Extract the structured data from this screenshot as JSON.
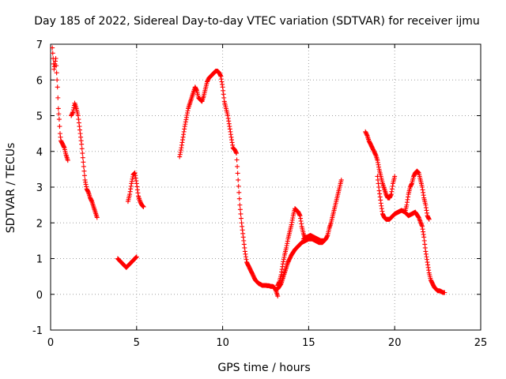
{
  "chart_data": {
    "type": "scatter",
    "title": "Day 185 of 2022, Sidereal Day-to-day VTEC variation (SDTVAR) for receiver ijmu",
    "xlabel": "GPS time / hours",
    "ylabel": "SDTVAR / TECUs",
    "xlim": [
      0,
      25
    ],
    "ylim": [
      -1,
      7
    ],
    "xticks": [
      "0",
      "5",
      "10",
      "15",
      "20",
      "25"
    ],
    "yticks": [
      "-1",
      "0",
      "1",
      "2",
      "3",
      "4",
      "5",
      "6",
      "7"
    ],
    "grid": true,
    "marker": "+",
    "color": "#ff0000",
    "series": [
      {
        "name": "seg1",
        "x": [
          0.1,
          0.2,
          0.3,
          0.35,
          0.4,
          0.45,
          0.5,
          0.55,
          0.6,
          0.7,
          0.8,
          0.9,
          1.0
        ],
        "y": [
          6.9,
          6.3,
          6.6,
          6.2,
          5.8,
          5.2,
          4.9,
          4.5,
          4.3,
          4.2,
          4.1,
          3.9,
          3.75
        ]
      },
      {
        "name": "seg2",
        "x": [
          1.2,
          1.3,
          1.4,
          1.5,
          1.6,
          1.7,
          1.8,
          1.9,
          2.0,
          2.1,
          2.2,
          2.3,
          2.4,
          2.5,
          2.6,
          2.7
        ],
        "y": [
          5.0,
          5.1,
          5.35,
          5.2,
          5.0,
          4.6,
          4.2,
          3.7,
          3.2,
          2.95,
          2.85,
          2.7,
          2.6,
          2.45,
          2.3,
          2.15
        ]
      },
      {
        "name": "seg3",
        "x": [
          3.9,
          4.0,
          4.1,
          4.2,
          4.3,
          4.4,
          4.5,
          4.6,
          4.7,
          4.8,
          4.9,
          5.0
        ],
        "y": [
          1.0,
          0.95,
          0.9,
          0.85,
          0.8,
          0.75,
          0.8,
          0.85,
          0.9,
          0.95,
          1.0,
          1.05
        ]
      },
      {
        "name": "seg4",
        "x": [
          4.5,
          4.6,
          4.7,
          4.8,
          4.9,
          5.0,
          5.1,
          5.2,
          5.3,
          5.4
        ],
        "y": [
          2.6,
          2.8,
          3.1,
          3.35,
          3.4,
          3.1,
          2.75,
          2.6,
          2.5,
          2.45
        ]
      },
      {
        "name": "seg5",
        "x": [
          7.5,
          7.6,
          7.7,
          7.8,
          7.9,
          8.0,
          8.1,
          8.2,
          8.3,
          8.4,
          8.5,
          8.6,
          8.7,
          8.8,
          8.9,
          9.0,
          9.1,
          9.2,
          9.3,
          9.4,
          9.5,
          9.6,
          9.7,
          9.8,
          9.9,
          10.0,
          10.1,
          10.2,
          10.3,
          10.4,
          10.5,
          10.6,
          10.7,
          10.8,
          10.9,
          11.0,
          11.1,
          11.2,
          11.3,
          11.4,
          11.5,
          11.6,
          11.7,
          11.8,
          11.9,
          12.0,
          12.1,
          12.2,
          12.3,
          12.4,
          12.5,
          12.6,
          12.7,
          12.8,
          12.9,
          13.0,
          13.1,
          13.2
        ],
        "y": [
          3.85,
          4.1,
          4.4,
          4.7,
          4.95,
          5.2,
          5.35,
          5.5,
          5.65,
          5.8,
          5.7,
          5.5,
          5.45,
          5.4,
          5.55,
          5.75,
          5.95,
          6.05,
          6.1,
          6.15,
          6.2,
          6.25,
          6.25,
          6.2,
          6.1,
          5.8,
          5.4,
          5.2,
          5.0,
          4.7,
          4.4,
          4.1,
          4.05,
          3.95,
          3.2,
          2.5,
          2.0,
          1.6,
          1.2,
          0.9,
          0.8,
          0.7,
          0.6,
          0.5,
          0.4,
          0.35,
          0.3,
          0.28,
          0.25,
          0.25,
          0.25,
          0.24,
          0.24,
          0.22,
          0.22,
          0.2,
          0.1,
          -0.05
        ]
      },
      {
        "name": "seg6",
        "x": [
          13.2,
          13.3,
          13.4,
          13.5,
          13.6,
          13.7,
          13.8,
          13.9,
          14.0,
          14.1,
          14.2,
          14.3,
          14.4,
          14.5,
          14.6,
          14.7,
          14.8
        ],
        "y": [
          0.25,
          0.35,
          0.55,
          0.85,
          1.1,
          1.3,
          1.55,
          1.75,
          1.95,
          2.2,
          2.4,
          2.35,
          2.3,
          2.2,
          1.9,
          1.7,
          1.55
        ]
      },
      {
        "name": "seg7",
        "x": [
          13.2,
          13.4,
          13.6,
          13.8,
          14.0,
          14.2,
          14.4,
          14.6,
          14.8,
          15.0,
          15.2,
          15.4,
          15.6,
          15.8,
          16.0,
          16.1,
          16.2,
          16.3,
          16.4,
          16.5,
          16.6,
          16.7,
          16.8,
          16.9
        ],
        "y": [
          0.15,
          0.3,
          0.6,
          0.9,
          1.1,
          1.25,
          1.35,
          1.45,
          1.5,
          1.55,
          1.55,
          1.5,
          1.45,
          1.45,
          1.55,
          1.65,
          1.85,
          2.0,
          2.2,
          2.4,
          2.6,
          2.8,
          3.0,
          3.2
        ]
      },
      {
        "name": "seg8",
        "x": [
          14.7,
          14.9,
          15.1,
          15.3,
          15.5,
          15.7,
          15.9
        ],
        "y": [
          1.55,
          1.6,
          1.65,
          1.6,
          1.55,
          1.5,
          1.5
        ]
      },
      {
        "name": "seg9",
        "x": [
          18.3,
          18.4,
          18.5,
          18.6,
          18.7,
          18.8,
          18.9,
          19.0,
          19.1,
          19.2,
          19.3,
          19.4,
          19.5,
          19.6,
          19.7,
          19.8,
          19.9,
          20.0
        ],
        "y": [
          4.55,
          4.45,
          4.3,
          4.2,
          4.1,
          4.0,
          3.9,
          3.75,
          3.5,
          3.3,
          3.1,
          2.95,
          2.8,
          2.7,
          2.7,
          2.8,
          3.1,
          3.3
        ]
      },
      {
        "name": "seg10",
        "x": [
          19.0,
          19.1,
          19.2,
          19.3,
          19.4,
          19.5,
          19.6,
          19.7,
          19.8,
          19.9,
          20.0,
          20.2,
          20.4,
          20.6,
          20.8,
          21.0,
          21.2,
          21.4,
          21.6,
          21.7,
          21.8,
          21.9,
          22.0,
          22.1,
          22.2,
          22.3,
          22.4,
          22.5,
          22.6,
          22.7,
          22.8,
          22.9
        ],
        "y": [
          3.3,
          2.9,
          2.55,
          2.25,
          2.15,
          2.1,
          2.1,
          2.1,
          2.15,
          2.2,
          2.25,
          2.3,
          2.35,
          2.3,
          2.2,
          2.25,
          2.3,
          2.15,
          1.9,
          1.6,
          1.2,
          0.9,
          0.6,
          0.4,
          0.3,
          0.2,
          0.15,
          0.1,
          0.1,
          0.08,
          0.05,
          0.05
        ]
      },
      {
        "name": "seg11",
        "x": [
          20.6,
          20.7,
          20.8,
          20.9,
          21.0,
          21.1,
          21.2,
          21.3,
          21.4,
          21.5,
          21.6,
          21.7,
          21.8,
          21.9,
          22.0
        ],
        "y": [
          2.3,
          2.5,
          2.8,
          3.0,
          3.1,
          3.3,
          3.4,
          3.45,
          3.4,
          3.2,
          3.0,
          2.7,
          2.5,
          2.2,
          2.1
        ]
      }
    ]
  }
}
